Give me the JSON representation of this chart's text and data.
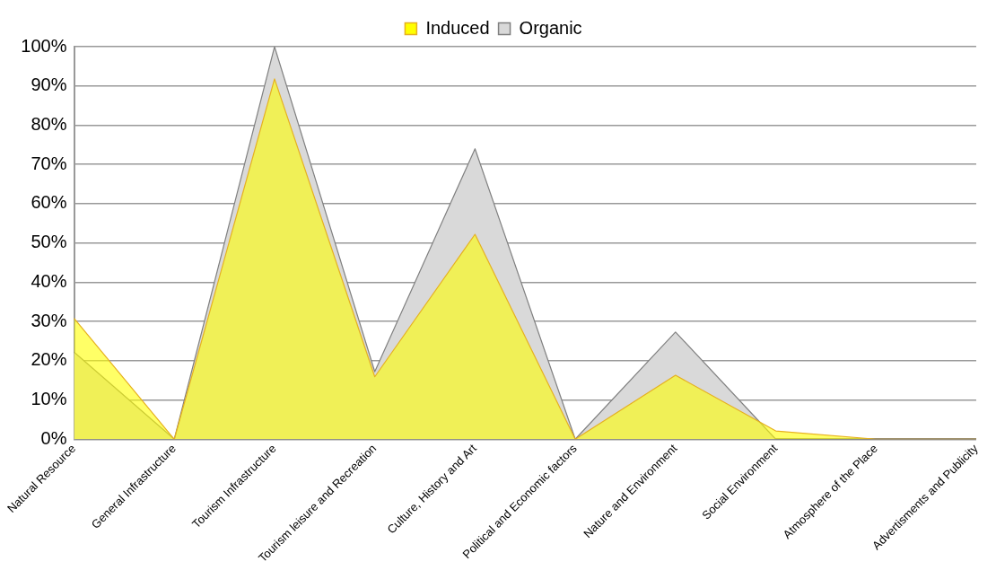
{
  "chart_data": {
    "type": "area",
    "categories": [
      "Natural Resource",
      "General Infrastructure",
      "Tourism Infrastructure",
      "Tourism leisure and Recreation",
      "Culture, History and Art",
      "Political and Economic factors",
      "Nature and Environment",
      "Social Environment",
      "Atmosphere of the Place",
      "Advertisments and Publicity"
    ],
    "series": [
      {
        "name": "Induced",
        "color": "#ffff00",
        "values": [
          30.8,
          0,
          91.8,
          15.9,
          52.2,
          0,
          16.3,
          2.1,
          0,
          0
        ]
      },
      {
        "name": "Organic",
        "color": "#d9d9d9",
        "values": [
          22.2,
          0,
          100,
          17.2,
          74,
          0,
          27.3,
          0,
          0,
          0
        ]
      }
    ],
    "ylim": [
      0,
      100
    ],
    "yticks": [
      {
        "value": 0,
        "label": "0%"
      },
      {
        "value": 10,
        "label": "10%"
      },
      {
        "value": 20,
        "label": "20%"
      },
      {
        "value": 30,
        "label": "30%"
      },
      {
        "value": 40,
        "label": "40%"
      },
      {
        "value": 50,
        "label": "50%"
      },
      {
        "value": 60,
        "label": "60%"
      },
      {
        "value": 70,
        "label": "70%"
      },
      {
        "value": 80,
        "label": "80%"
      },
      {
        "value": 90,
        "label": "90%"
      },
      {
        "value": 100,
        "label": "100%"
      }
    ],
    "grid": "y",
    "legend": "top",
    "marker": "none"
  }
}
